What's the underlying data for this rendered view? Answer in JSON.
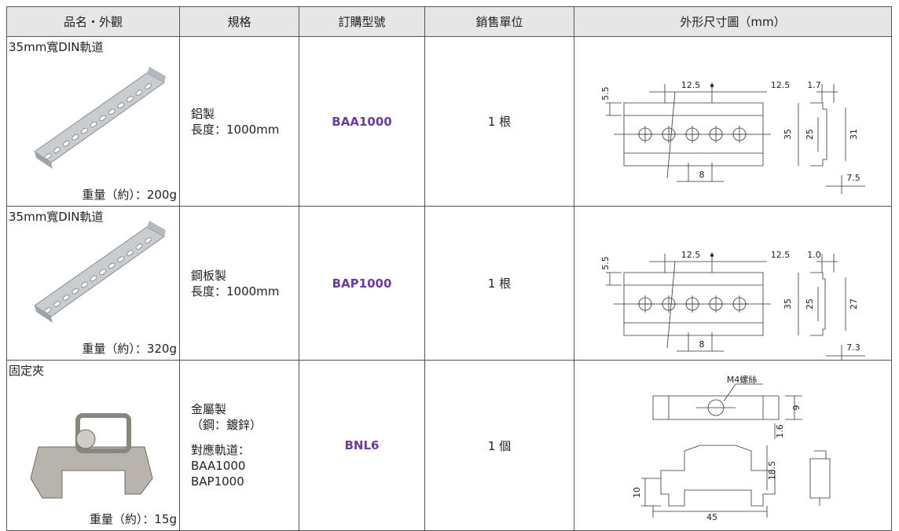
{
  "table": {
    "header": [
      "品名・外觀",
      "規格",
      "訂購型號",
      "銷售單位",
      "外形尺寸圖（mm）"
    ],
    "rows": [
      {
        "name": "35mm寬DIN軌道",
        "weight": "重量（約）：200g",
        "spec": [
          [
            "鋁製",
            "長度：1000mm"
          ]
        ],
        "model": "BAA1000",
        "unit": "1 根",
        "dims": [
          "12.5",
          "12.5",
          "1.7",
          "5.5",
          "35",
          "25",
          "31",
          "8",
          "7.5"
        ]
      },
      {
        "name": "35mm寬DIN軌道",
        "weight": "重量（約）：320g",
        "spec": [
          [
            "鋼板製",
            "長度：1000mm"
          ]
        ],
        "model": "BAP1000",
        "unit": "1 根",
        "dims": [
          "12.5",
          "12.5",
          "1.0",
          "5.5",
          "35",
          "25",
          "27",
          "8",
          "7.3"
        ]
      },
      {
        "name": "固定夾",
        "weight": "重量（約）：15g",
        "spec": [
          [
            "金屬製",
            "（鋼：鍍鋅）"
          ],
          [
            "對應軌道：",
            "BAA1000",
            "BAP1000"
          ]
        ],
        "model": "BNL6",
        "unit": "1 個",
        "dims": [
          "M4螺絲",
          "9",
          "1.6",
          "18.5",
          "10",
          "45"
        ]
      }
    ]
  }
}
